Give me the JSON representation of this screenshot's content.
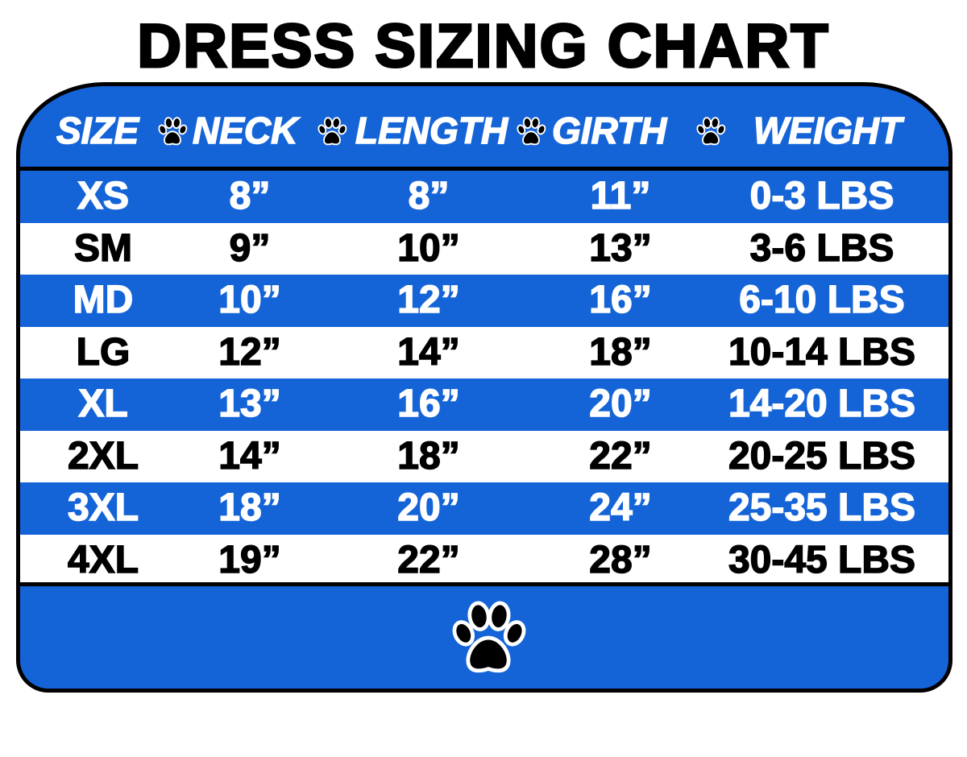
{
  "title": "DRESS SIZING CHART",
  "colors": {
    "accent_blue": "#1464d8",
    "text_dark": "#000000",
    "text_light": "#ffffff"
  },
  "icons": {
    "header_separator": "paw-icon",
    "footer": "paw-icon"
  },
  "table": {
    "headers": [
      "SIZE",
      "NECK",
      "LENGTH",
      "GIRTH",
      "WEIGHT"
    ],
    "rows": [
      [
        "XS",
        "8”",
        "8”",
        "11”",
        "0-3 LBS"
      ],
      [
        "SM",
        "9”",
        "10”",
        "13”",
        "3-6 LBS"
      ],
      [
        "MD",
        "10”",
        "12”",
        "16”",
        "6-10 LBS"
      ],
      [
        "LG",
        "12”",
        "14”",
        "18”",
        "10-14 LBS"
      ],
      [
        "XL",
        "13”",
        "16”",
        "20”",
        "14-20 LBS"
      ],
      [
        "2XL",
        "14”",
        "18”",
        "22”",
        "20-25 LBS"
      ],
      [
        "3XL",
        "18”",
        "20”",
        "24”",
        "25-35 LBS"
      ],
      [
        "4XL",
        "19”",
        "22”",
        "28”",
        "30-45 LBS"
      ]
    ]
  }
}
